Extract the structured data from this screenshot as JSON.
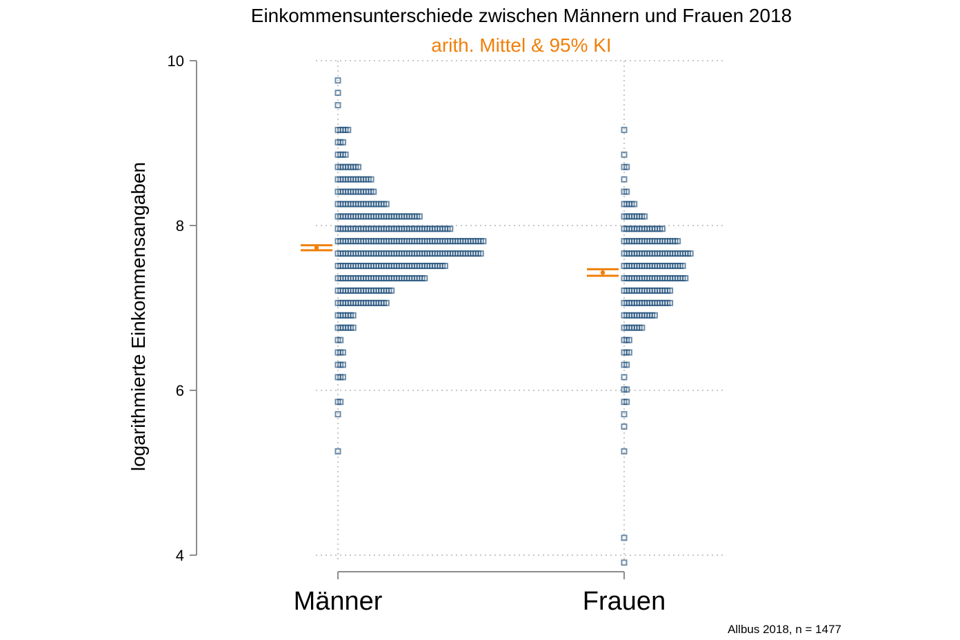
{
  "chart_data": {
    "type": "scatter",
    "title": "Einkommensunterschiede zwischen Männern und Frauen 2018",
    "subtitle": "arith. Mittel & 95% KI",
    "ylabel": "logarithmierte Einkommensangaben",
    "xlabel": "",
    "ylim": [
      4,
      10
    ],
    "yticks": [
      4,
      6,
      8,
      10
    ],
    "grid": true,
    "categories": [
      "Männer",
      "Frauen"
    ],
    "note": "Allbus 2018, n = 1477",
    "colors": {
      "points": "#1f4e79",
      "mean_ci": "#f07f09",
      "grid": "#b4b4b4",
      "axis": "#8c8c8c"
    },
    "series": [
      {
        "category": "Männer",
        "mean": 7.73,
        "ci": [
          7.7,
          7.76
        ],
        "points": [
          {
            "y": 9.76,
            "count": 1
          },
          {
            "y": 9.61,
            "count": 1
          },
          {
            "y": 9.46,
            "count": 1
          },
          {
            "y": 9.16,
            "count": 5
          },
          {
            "y": 9.01,
            "count": 3
          },
          {
            "y": 8.86,
            "count": 4
          },
          {
            "y": 8.71,
            "count": 9
          },
          {
            "y": 8.56,
            "count": 14
          },
          {
            "y": 8.41,
            "count": 15
          },
          {
            "y": 8.26,
            "count": 20
          },
          {
            "y": 8.11,
            "count": 33
          },
          {
            "y": 7.96,
            "count": 45
          },
          {
            "y": 7.81,
            "count": 58
          },
          {
            "y": 7.66,
            "count": 57
          },
          {
            "y": 7.51,
            "count": 43
          },
          {
            "y": 7.36,
            "count": 35
          },
          {
            "y": 7.21,
            "count": 22
          },
          {
            "y": 7.06,
            "count": 20
          },
          {
            "y": 6.91,
            "count": 7
          },
          {
            "y": 6.76,
            "count": 7
          },
          {
            "y": 6.61,
            "count": 2
          },
          {
            "y": 6.46,
            "count": 3
          },
          {
            "y": 6.31,
            "count": 3
          },
          {
            "y": 6.16,
            "count": 3
          },
          {
            "y": 5.86,
            "count": 2
          },
          {
            "y": 5.71,
            "count": 1
          },
          {
            "y": 5.26,
            "count": 1
          }
        ]
      },
      {
        "category": "Frauen",
        "mean": 7.43,
        "ci": [
          7.39,
          7.47
        ],
        "points": [
          {
            "y": 9.16,
            "count": 1
          },
          {
            "y": 8.86,
            "count": 1
          },
          {
            "y": 8.71,
            "count": 2
          },
          {
            "y": 8.56,
            "count": 1
          },
          {
            "y": 8.41,
            "count": 2
          },
          {
            "y": 8.26,
            "count": 5
          },
          {
            "y": 8.11,
            "count": 9
          },
          {
            "y": 7.96,
            "count": 16
          },
          {
            "y": 7.81,
            "count": 22
          },
          {
            "y": 7.66,
            "count": 27
          },
          {
            "y": 7.51,
            "count": 24
          },
          {
            "y": 7.36,
            "count": 25
          },
          {
            "y": 7.21,
            "count": 19
          },
          {
            "y": 7.06,
            "count": 19
          },
          {
            "y": 6.91,
            "count": 13
          },
          {
            "y": 6.76,
            "count": 8
          },
          {
            "y": 6.61,
            "count": 3
          },
          {
            "y": 6.46,
            "count": 3
          },
          {
            "y": 6.31,
            "count": 2
          },
          {
            "y": 6.16,
            "count": 1
          },
          {
            "y": 6.01,
            "count": 2
          },
          {
            "y": 5.86,
            "count": 2
          },
          {
            "y": 5.71,
            "count": 1
          },
          {
            "y": 5.56,
            "count": 1
          },
          {
            "y": 5.26,
            "count": 1
          },
          {
            "y": 4.21,
            "count": 1
          },
          {
            "y": 3.91,
            "count": 1
          }
        ]
      }
    ]
  }
}
